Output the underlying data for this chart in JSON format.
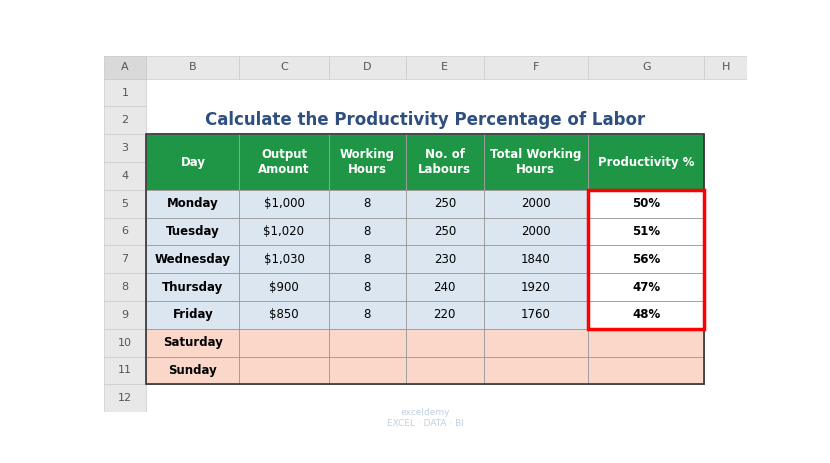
{
  "title": "Calculate the Productivity Percentage of Labor",
  "title_color": "#2F4F7F",
  "title_fontsize": 12,
  "col_headers": [
    "Day",
    "Output\nAmount",
    "Working\nHours",
    "No. of\nLabours",
    "Total Working\nHours",
    "Productivity %"
  ],
  "rows": [
    [
      "Monday",
      "$1,000",
      "8",
      "250",
      "2000",
      "50%"
    ],
    [
      "Tuesday",
      "$1,020",
      "8",
      "250",
      "2000",
      "51%"
    ],
    [
      "Wednesday",
      "$1,030",
      "8",
      "230",
      "1840",
      "56%"
    ],
    [
      "Thursday",
      "$900",
      "8",
      "240",
      "1920",
      "47%"
    ],
    [
      "Friday",
      "$850",
      "8",
      "220",
      "1760",
      "48%"
    ],
    [
      "Saturday",
      "",
      "",
      "",
      "",
      ""
    ],
    [
      "Sunday",
      "",
      "",
      "",
      "",
      ""
    ]
  ],
  "header_bg": "#1E9645",
  "header_text_color": "#FFFFFF",
  "data_bg_blue": "#DCE6F1",
  "data_bg_white": "#FFFFFF",
  "data_bg_pink": "#FAD7C8",
  "data_text_color": "#000000",
  "red_border_color": "#FF0000",
  "excel_col_headers": [
    "A",
    "B",
    "C",
    "D",
    "E",
    "F",
    "G",
    "H"
  ],
  "excel_row_headers": [
    "1",
    "2",
    "3",
    "4",
    "5",
    "6",
    "7",
    "8",
    "9",
    "10",
    "11",
    "12"
  ],
  "excel_header_bg": "#E8E8E8",
  "excel_header_text": "#555555",
  "separator_line_color": "#9DC3E6",
  "watermark_text": "exceldemy\nEXCEL · DATA · BI"
}
